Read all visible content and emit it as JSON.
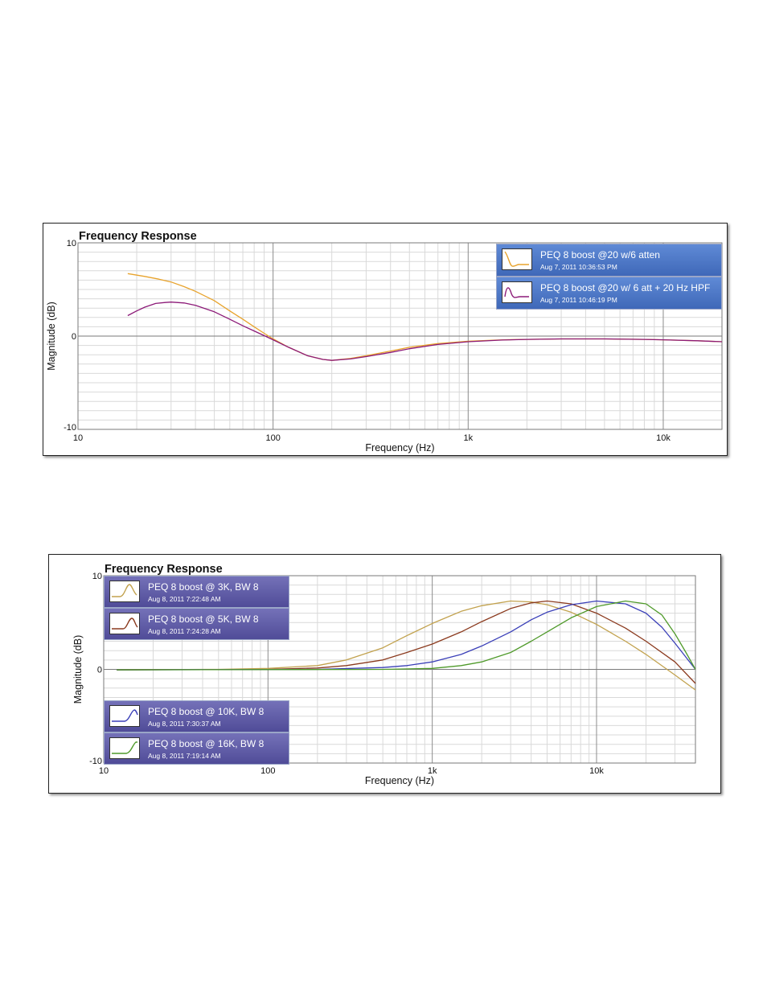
{
  "colors": {
    "grid_minor": "#d9d9d9",
    "grid_major": "#8c8c8c",
    "zero_line": "#7a7a7a",
    "text": "#111111"
  },
  "chart_data": [
    {
      "type": "line",
      "title": "Frequency Response",
      "xlabel": "Frequency (Hz)",
      "ylabel": "Magnitude (dB)",
      "xscale": "log",
      "xlim": [
        10,
        20000
      ],
      "ylim": [
        -10,
        10
      ],
      "xticks": [
        {
          "v": 10,
          "label": "10"
        },
        {
          "v": 100,
          "label": "100"
        },
        {
          "v": 1000,
          "label": "1k"
        },
        {
          "v": 10000,
          "label": "10k"
        }
      ],
      "yticks": [
        {
          "v": 10,
          "label": "10"
        },
        {
          "v": 0,
          "label": "0"
        },
        {
          "v": -10,
          "label": "-10"
        }
      ],
      "grid": true,
      "legend_position": "top-right",
      "series": [
        {
          "name": "PEQ 8 boost @20 w/6 atten",
          "date": "Aug 7, 2011 10:36:53 PM",
          "color": "#e8a32c",
          "x": [
            18,
            22,
            26,
            30,
            35,
            40,
            50,
            60,
            70,
            80,
            90,
            100,
            120,
            150,
            180,
            200,
            250,
            300,
            400,
            500,
            700,
            1000,
            1500,
            2000,
            3000,
            5000,
            8000,
            10000,
            15000,
            20000
          ],
          "y": [
            6.7,
            6.4,
            6.1,
            5.8,
            5.3,
            4.8,
            3.8,
            2.7,
            1.8,
            1.0,
            0.3,
            -0.3,
            -1.2,
            -2.1,
            -2.5,
            -2.6,
            -2.4,
            -2.1,
            -1.6,
            -1.2,
            -0.8,
            -0.55,
            -0.4,
            -0.35,
            -0.3,
            -0.3,
            -0.35,
            -0.4,
            -0.5,
            -0.6
          ]
        },
        {
          "name": "PEQ 8 boost @20 w/ 6 att + 20 Hz HPF",
          "date": "Aug 7, 2011 10:46:19 PM",
          "color": "#8c1a78",
          "x": [
            18,
            20,
            22,
            25,
            28,
            30,
            35,
            40,
            50,
            60,
            70,
            80,
            90,
            100,
            120,
            150,
            180,
            200,
            250,
            300,
            400,
            500,
            700,
            1000,
            1500,
            2000,
            3000,
            5000,
            8000,
            10000,
            15000,
            20000
          ],
          "y": [
            2.2,
            2.7,
            3.1,
            3.5,
            3.6,
            3.65,
            3.55,
            3.3,
            2.6,
            1.8,
            1.1,
            0.55,
            0.05,
            -0.4,
            -1.2,
            -2.1,
            -2.5,
            -2.6,
            -2.45,
            -2.2,
            -1.75,
            -1.35,
            -0.9,
            -0.6,
            -0.42,
            -0.35,
            -0.3,
            -0.3,
            -0.35,
            -0.4,
            -0.5,
            -0.6
          ]
        }
      ]
    },
    {
      "type": "line",
      "title": "Frequency Response",
      "xlabel": "Frequency (Hz)",
      "ylabel": "Magnitude (dB)",
      "xscale": "log",
      "xlim": [
        10,
        40000
      ],
      "ylim": [
        -10,
        10
      ],
      "xticks": [
        {
          "v": 10,
          "label": "10"
        },
        {
          "v": 100,
          "label": "100"
        },
        {
          "v": 1000,
          "label": "1k"
        },
        {
          "v": 10000,
          "label": "10k"
        }
      ],
      "yticks": [
        {
          "v": 10,
          "label": "10"
        },
        {
          "v": 0,
          "label": "0"
        },
        {
          "v": -10,
          "label": "-10"
        }
      ],
      "grid": true,
      "legend_position": "left",
      "series": [
        {
          "name": "PEQ 8 boost @ 3K, BW 8",
          "date": "Aug 8, 2011 7:22:48 AM",
          "color": "#c2a24e",
          "x": [
            12,
            50,
            100,
            200,
            300,
            500,
            700,
            1000,
            1500,
            2000,
            3000,
            4000,
            5000,
            7000,
            10000,
            15000,
            20000,
            30000,
            40000
          ],
          "y": [
            -0.05,
            0.0,
            0.1,
            0.4,
            1.0,
            2.3,
            3.6,
            4.9,
            6.2,
            6.8,
            7.3,
            7.2,
            6.9,
            6.1,
            4.8,
            3.0,
            1.6,
            -0.6,
            -2.2
          ]
        },
        {
          "name": "PEQ 8 boost @ 5K, BW 8",
          "date": "Aug 8, 2011 7:24:28 AM",
          "color": "#8b3a1e",
          "x": [
            12,
            100,
            200,
            300,
            500,
            700,
            1000,
            1500,
            2000,
            3000,
            4000,
            5000,
            7000,
            10000,
            15000,
            20000,
            30000,
            40000
          ],
          "y": [
            -0.05,
            0.0,
            0.15,
            0.4,
            1.0,
            1.8,
            2.7,
            4.0,
            5.1,
            6.5,
            7.1,
            7.3,
            7.0,
            6.0,
            4.4,
            3.0,
            0.8,
            -1.5
          ]
        },
        {
          "name": "PEQ 8 boost @ 10K, BW 8",
          "date": "Aug 8, 2011 7:30:37 AM",
          "color": "#3a3fb8",
          "x": [
            12,
            200,
            500,
            700,
            1000,
            1500,
            2000,
            3000,
            4000,
            5000,
            7000,
            10000,
            15000,
            20000,
            25000,
            30000,
            40000
          ],
          "y": [
            -0.05,
            0.0,
            0.2,
            0.4,
            0.8,
            1.6,
            2.5,
            4.0,
            5.3,
            6.1,
            6.9,
            7.3,
            7.0,
            6.0,
            4.5,
            2.8,
            0.0
          ]
        },
        {
          "name": "PEQ 8 boost @ 16K, BW 8",
          "date": "Aug 8, 2011 7:19:14 AM",
          "color": "#4f9a2a",
          "x": [
            12,
            500,
            1000,
            1500,
            2000,
            3000,
            4000,
            5000,
            7000,
            10000,
            15000,
            20000,
            25000,
            30000,
            35000,
            40000
          ],
          "y": [
            -0.05,
            0.0,
            0.1,
            0.4,
            0.8,
            1.8,
            3.0,
            4.0,
            5.5,
            6.7,
            7.3,
            7.0,
            5.8,
            3.8,
            1.8,
            0.0
          ]
        }
      ]
    }
  ]
}
